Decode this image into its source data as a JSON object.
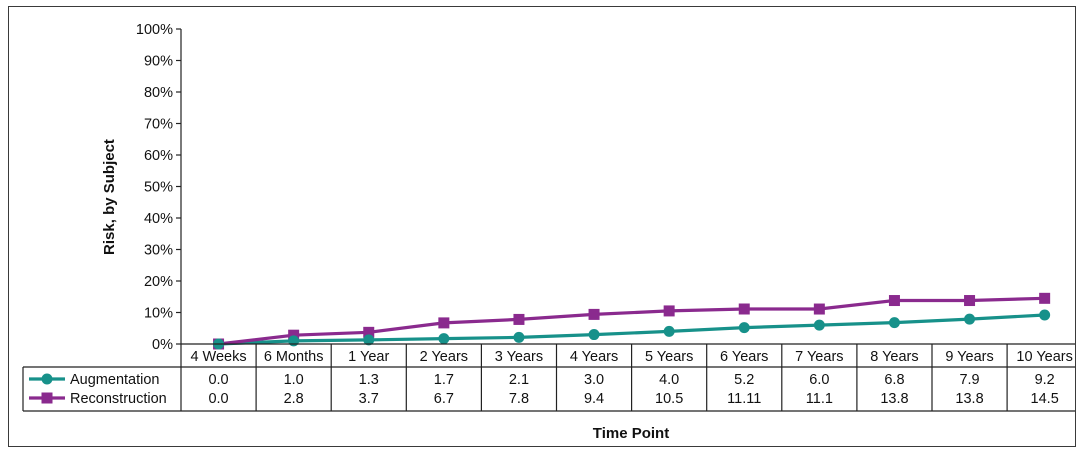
{
  "chart_data": {
    "type": "line",
    "title": "",
    "xlabel": "Time Point",
    "ylabel": "Risk, by Subject",
    "ylim": [
      0,
      100
    ],
    "y_ticks": [
      "0%",
      "10%",
      "20%",
      "30%",
      "40%",
      "50%",
      "60%",
      "70%",
      "80%",
      "90%",
      "100%"
    ],
    "categories": [
      "4 Weeks",
      "6 Months",
      "1 Year",
      "2 Years",
      "3 Years",
      "4 Years",
      "5 Years",
      "6 Years",
      "7 Years",
      "8 Years",
      "9 Years",
      "10 Years"
    ],
    "grid": false,
    "legend": "in data table below the plot",
    "series": [
      {
        "name": "Augmentation",
        "color": "#17918a",
        "marker": "circle",
        "values": [
          0.0,
          1.0,
          1.3,
          1.7,
          2.1,
          3.0,
          4.0,
          5.2,
          6.0,
          6.8,
          7.9,
          9.2
        ],
        "table_values": [
          "0.0",
          "1.0",
          "1.3",
          "1.7",
          "2.1",
          "3.0",
          "4.0",
          "5.2",
          "6.0",
          "6.8",
          "7.9",
          "9.2"
        ]
      },
      {
        "name": "Reconstruction",
        "color": "#8a2a8e",
        "marker": "square",
        "values": [
          0.0,
          2.8,
          3.7,
          6.7,
          7.8,
          9.4,
          10.5,
          11.11,
          11.1,
          13.8,
          13.8,
          14.5
        ],
        "table_values": [
          "0.0",
          "2.8",
          "3.7",
          "6.7",
          "7.8",
          "9.4",
          "10.5",
          "11.11",
          "11.1",
          "13.8",
          "13.8",
          "14.5"
        ]
      }
    ]
  }
}
